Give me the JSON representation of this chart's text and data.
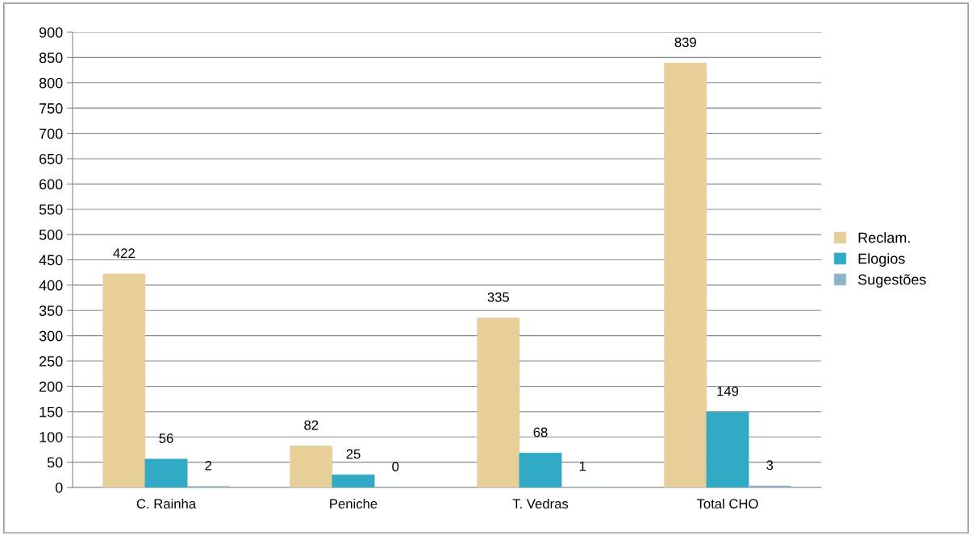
{
  "chart_data": {
    "type": "bar",
    "categories": [
      "C. Rainha",
      "Peniche",
      "T. Vedras",
      "Total CHO"
    ],
    "series": [
      {
        "name": "Reclam.",
        "color": "#e6cf98",
        "values": [
          422,
          82,
          335,
          839
        ]
      },
      {
        "name": "Elogios",
        "color": "#31aac6",
        "values": [
          56,
          25,
          68,
          149
        ]
      },
      {
        "name": "Sugestões",
        "color": "#8fb4c9",
        "values": [
          2,
          0,
          1,
          3
        ]
      }
    ],
    "ylim": [
      0,
      900
    ],
    "yticks": [
      0,
      50,
      100,
      150,
      200,
      250,
      300,
      350,
      400,
      450,
      500,
      550,
      600,
      650,
      700,
      750,
      800,
      850,
      900
    ],
    "grid": "y",
    "legend": "right",
    "data_labels": true
  }
}
